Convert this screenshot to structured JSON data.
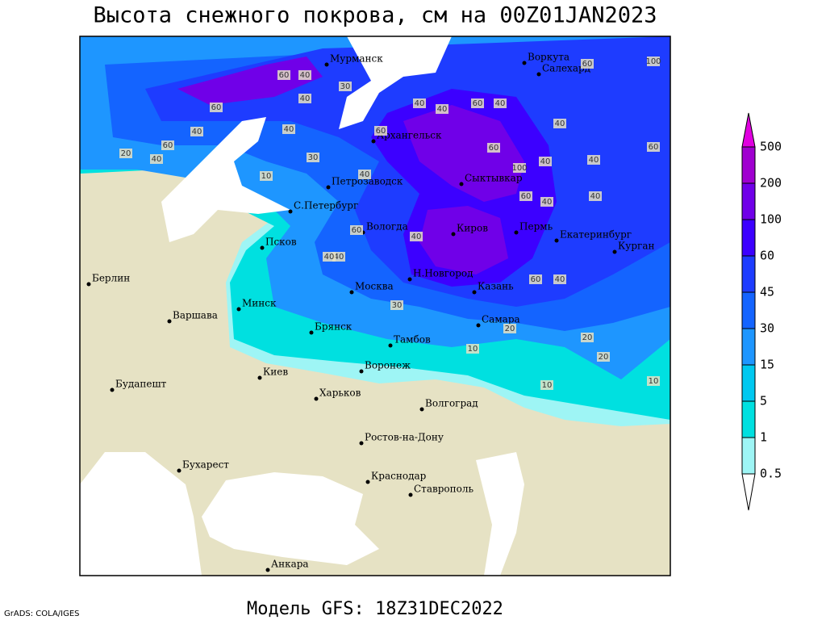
{
  "title": "Высота снежного покрова, см на 00Z01JAN2023",
  "footer": "Модель GFS: 18Z31DEC2022",
  "credit": "GrADS: COLA/IGES",
  "legend": {
    "levels": [
      500,
      200,
      100,
      60,
      45,
      30,
      15,
      5,
      1,
      0.5
    ],
    "colors": [
      "#e000e0",
      "#a000d0",
      "#7000e8",
      "#3c00ff",
      "#1e3cff",
      "#1464ff",
      "#1e96ff",
      "#00c8f0",
      "#00e0e0",
      "#9ef5f5",
      "#ffffff"
    ]
  },
  "map": {
    "cities": [
      {
        "name": "Мурманск"
      },
      {
        "name": "Воркута"
      },
      {
        "name": "Салехард"
      },
      {
        "name": "Архангельск"
      },
      {
        "name": "Сыктывкар"
      },
      {
        "name": "Петрозаводск"
      },
      {
        "name": "С.Петербург"
      },
      {
        "name": "Вологда"
      },
      {
        "name": "Киров"
      },
      {
        "name": "Пермь"
      },
      {
        "name": "Екатеринбург"
      },
      {
        "name": "Курган"
      },
      {
        "name": "Псков"
      },
      {
        "name": "Н.Новгород"
      },
      {
        "name": "Казань"
      },
      {
        "name": "Москва"
      },
      {
        "name": "Минск"
      },
      {
        "name": "Берлин"
      },
      {
        "name": "Варшава"
      },
      {
        "name": "Брянск"
      },
      {
        "name": "Самара"
      },
      {
        "name": "Тамбов"
      },
      {
        "name": "Воронеж"
      },
      {
        "name": "Киев"
      },
      {
        "name": "Будапешт"
      },
      {
        "name": "Харьков"
      },
      {
        "name": "Волгоград"
      },
      {
        "name": "Ростов-на-Дону"
      },
      {
        "name": "Бухарест"
      },
      {
        "name": "Краснодар"
      },
      {
        "name": "Ставрополь"
      },
      {
        "name": "Анкара"
      }
    ],
    "contour_labels": [
      60,
      40,
      30,
      60,
      40,
      60,
      40,
      20,
      40,
      40,
      30,
      10,
      40,
      60,
      40,
      40,
      60,
      40,
      40,
      60,
      100,
      60,
      100,
      40,
      40,
      60,
      40,
      40,
      40,
      60,
      60,
      40,
      60,
      40,
      40,
      20,
      10,
      20,
      20,
      10,
      10,
      30
    ]
  }
}
